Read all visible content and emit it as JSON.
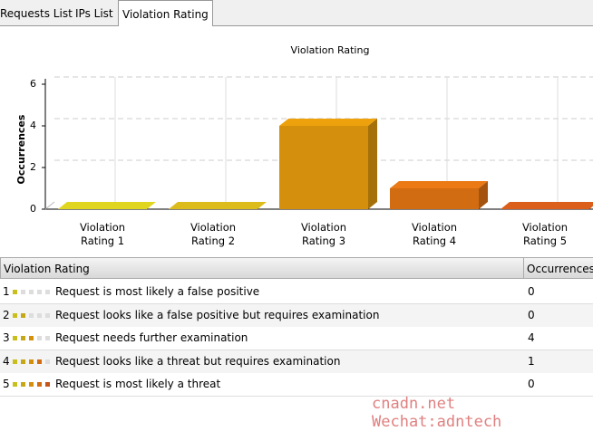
{
  "tabs": [
    "Requests List",
    "IPs List",
    "Violation Rating"
  ],
  "chart_data": {
    "type": "bar",
    "title": "Violation Rating",
    "ylabel": "Occurrences",
    "categories": [
      "Violation Rating 1",
      "Violation Rating 2",
      "Violation Rating 3",
      "Violation Rating 4",
      "Violation Rating 5"
    ],
    "values": [
      0,
      0,
      4,
      1,
      0
    ],
    "colors": [
      "#c8bf1c",
      "#c4a818",
      "#d4900c",
      "#d26c12",
      "#c45418"
    ],
    "ylim": [
      0,
      6
    ],
    "yticks": [
      0,
      2,
      4,
      6
    ],
    "grid": true
  },
  "table": {
    "columns": [
      "Violation Rating",
      "Occurrences"
    ],
    "rows": [
      [
        "1",
        "Request is most likely a false positive",
        "0"
      ],
      [
        "2",
        "Request looks like a false positive but requires examination",
        "0"
      ],
      [
        "3",
        "Request needs further examination",
        "4"
      ],
      [
        "4",
        "Request looks like a threat but requires examination",
        "1"
      ],
      [
        "5",
        "Request is most likely a threat",
        "0"
      ]
    ]
  },
  "watermark": "cnadn.net Wechat:adntech"
}
